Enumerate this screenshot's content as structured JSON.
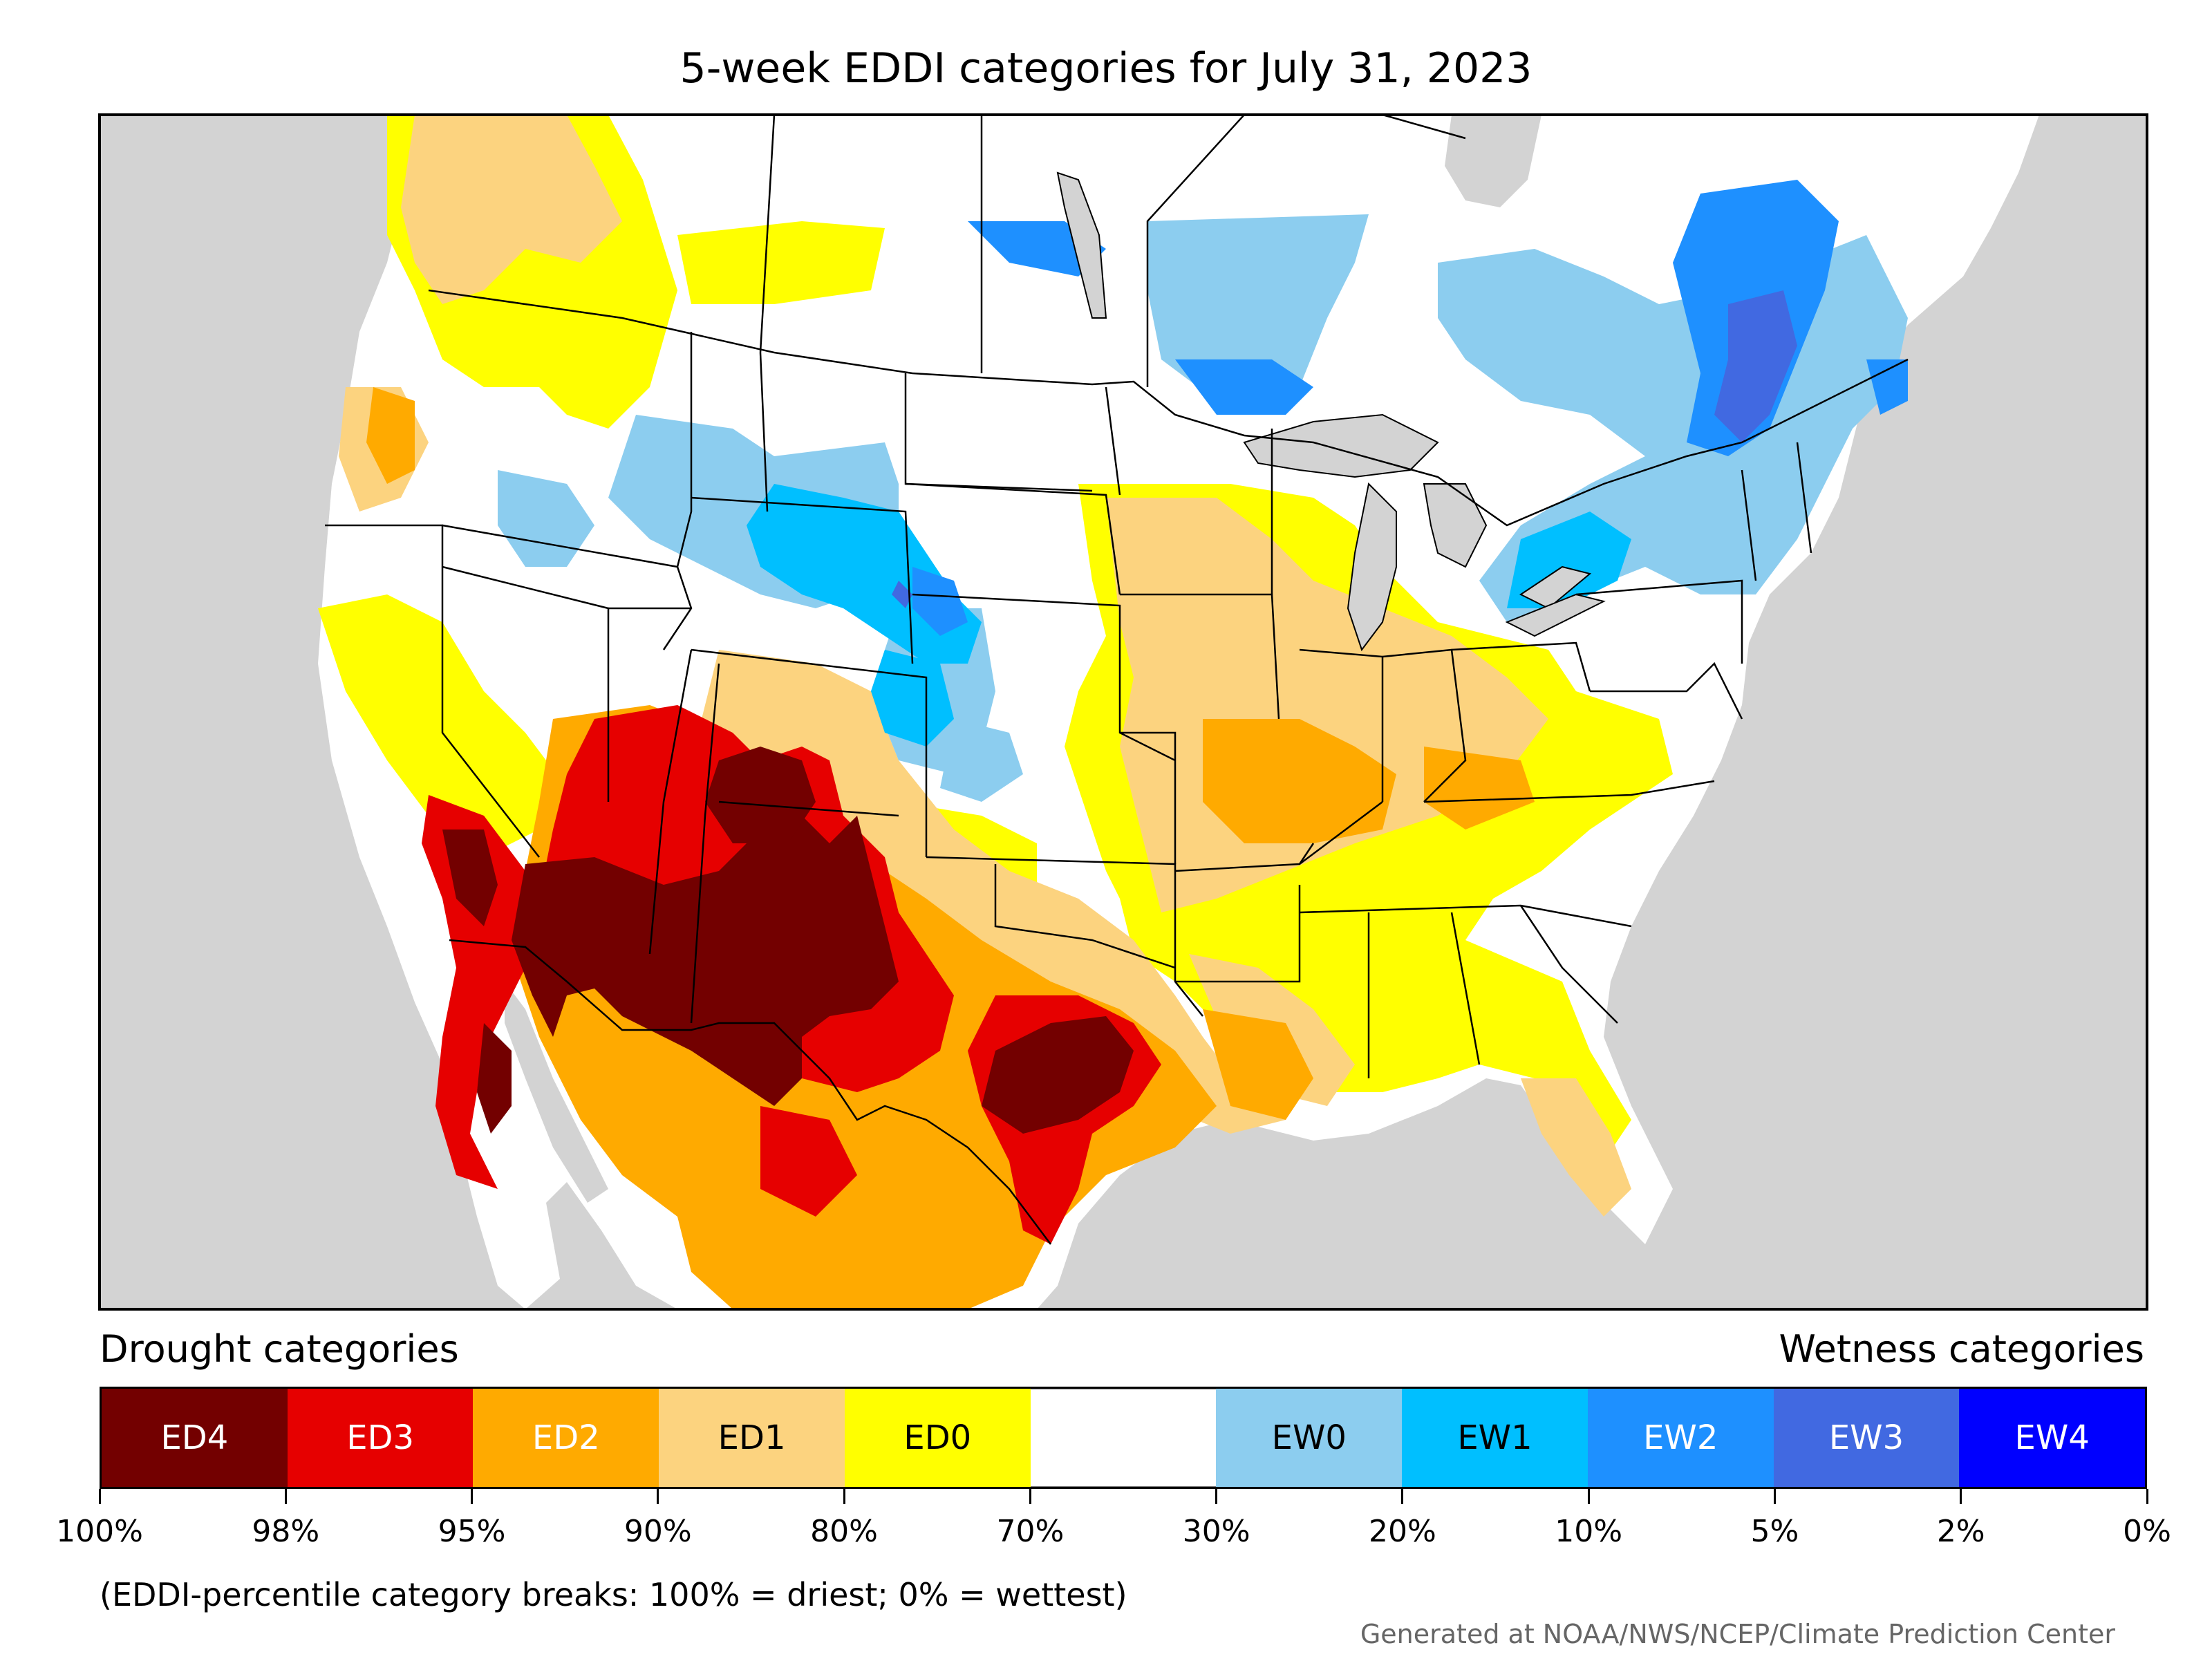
{
  "title": "5-week EDDI categories for July 31, 2023",
  "legend": {
    "drought_title": "Drought categories",
    "wetness_title": "Wetness categories",
    "categories": [
      {
        "label": "ED4",
        "color": "#730000",
        "text_color": "#ffffff"
      },
      {
        "label": "ED3",
        "color": "#e60000",
        "text_color": "#ffffff"
      },
      {
        "label": "ED2",
        "color": "#ffaa00",
        "text_color": "#ffffff"
      },
      {
        "label": "ED1",
        "color": "#fcd37f",
        "text_color": "#000000"
      },
      {
        "label": "ED0",
        "color": "#ffff00",
        "text_color": "#000000"
      },
      {
        "label": "",
        "color": "#ffffff",
        "text_color": "#000000"
      },
      {
        "label": "EW0",
        "color": "#8ccdef",
        "text_color": "#000000"
      },
      {
        "label": "EW1",
        "color": "#00bfff",
        "text_color": "#000000"
      },
      {
        "label": "EW2",
        "color": "#1e90ff",
        "text_color": "#ffffff"
      },
      {
        "label": "EW3",
        "color": "#4169e1",
        "text_color": "#ffffff"
      },
      {
        "label": "EW4",
        "color": "#0000ff",
        "text_color": "#ffffff"
      }
    ],
    "ticks": [
      "100%",
      "98%",
      "95%",
      "90%",
      "80%",
      "70%",
      "30%",
      "20%",
      "10%",
      "5%",
      "2%",
      "0%"
    ],
    "note": "(EDDI-percentile category breaks: 100% = driest; 0% = wettest)"
  },
  "credit": "Generated at NOAA/NWS/NCEP/Climate Prediction Center",
  "colors": {
    "background_land": "#d3d3d3",
    "frame": "#000000"
  }
}
